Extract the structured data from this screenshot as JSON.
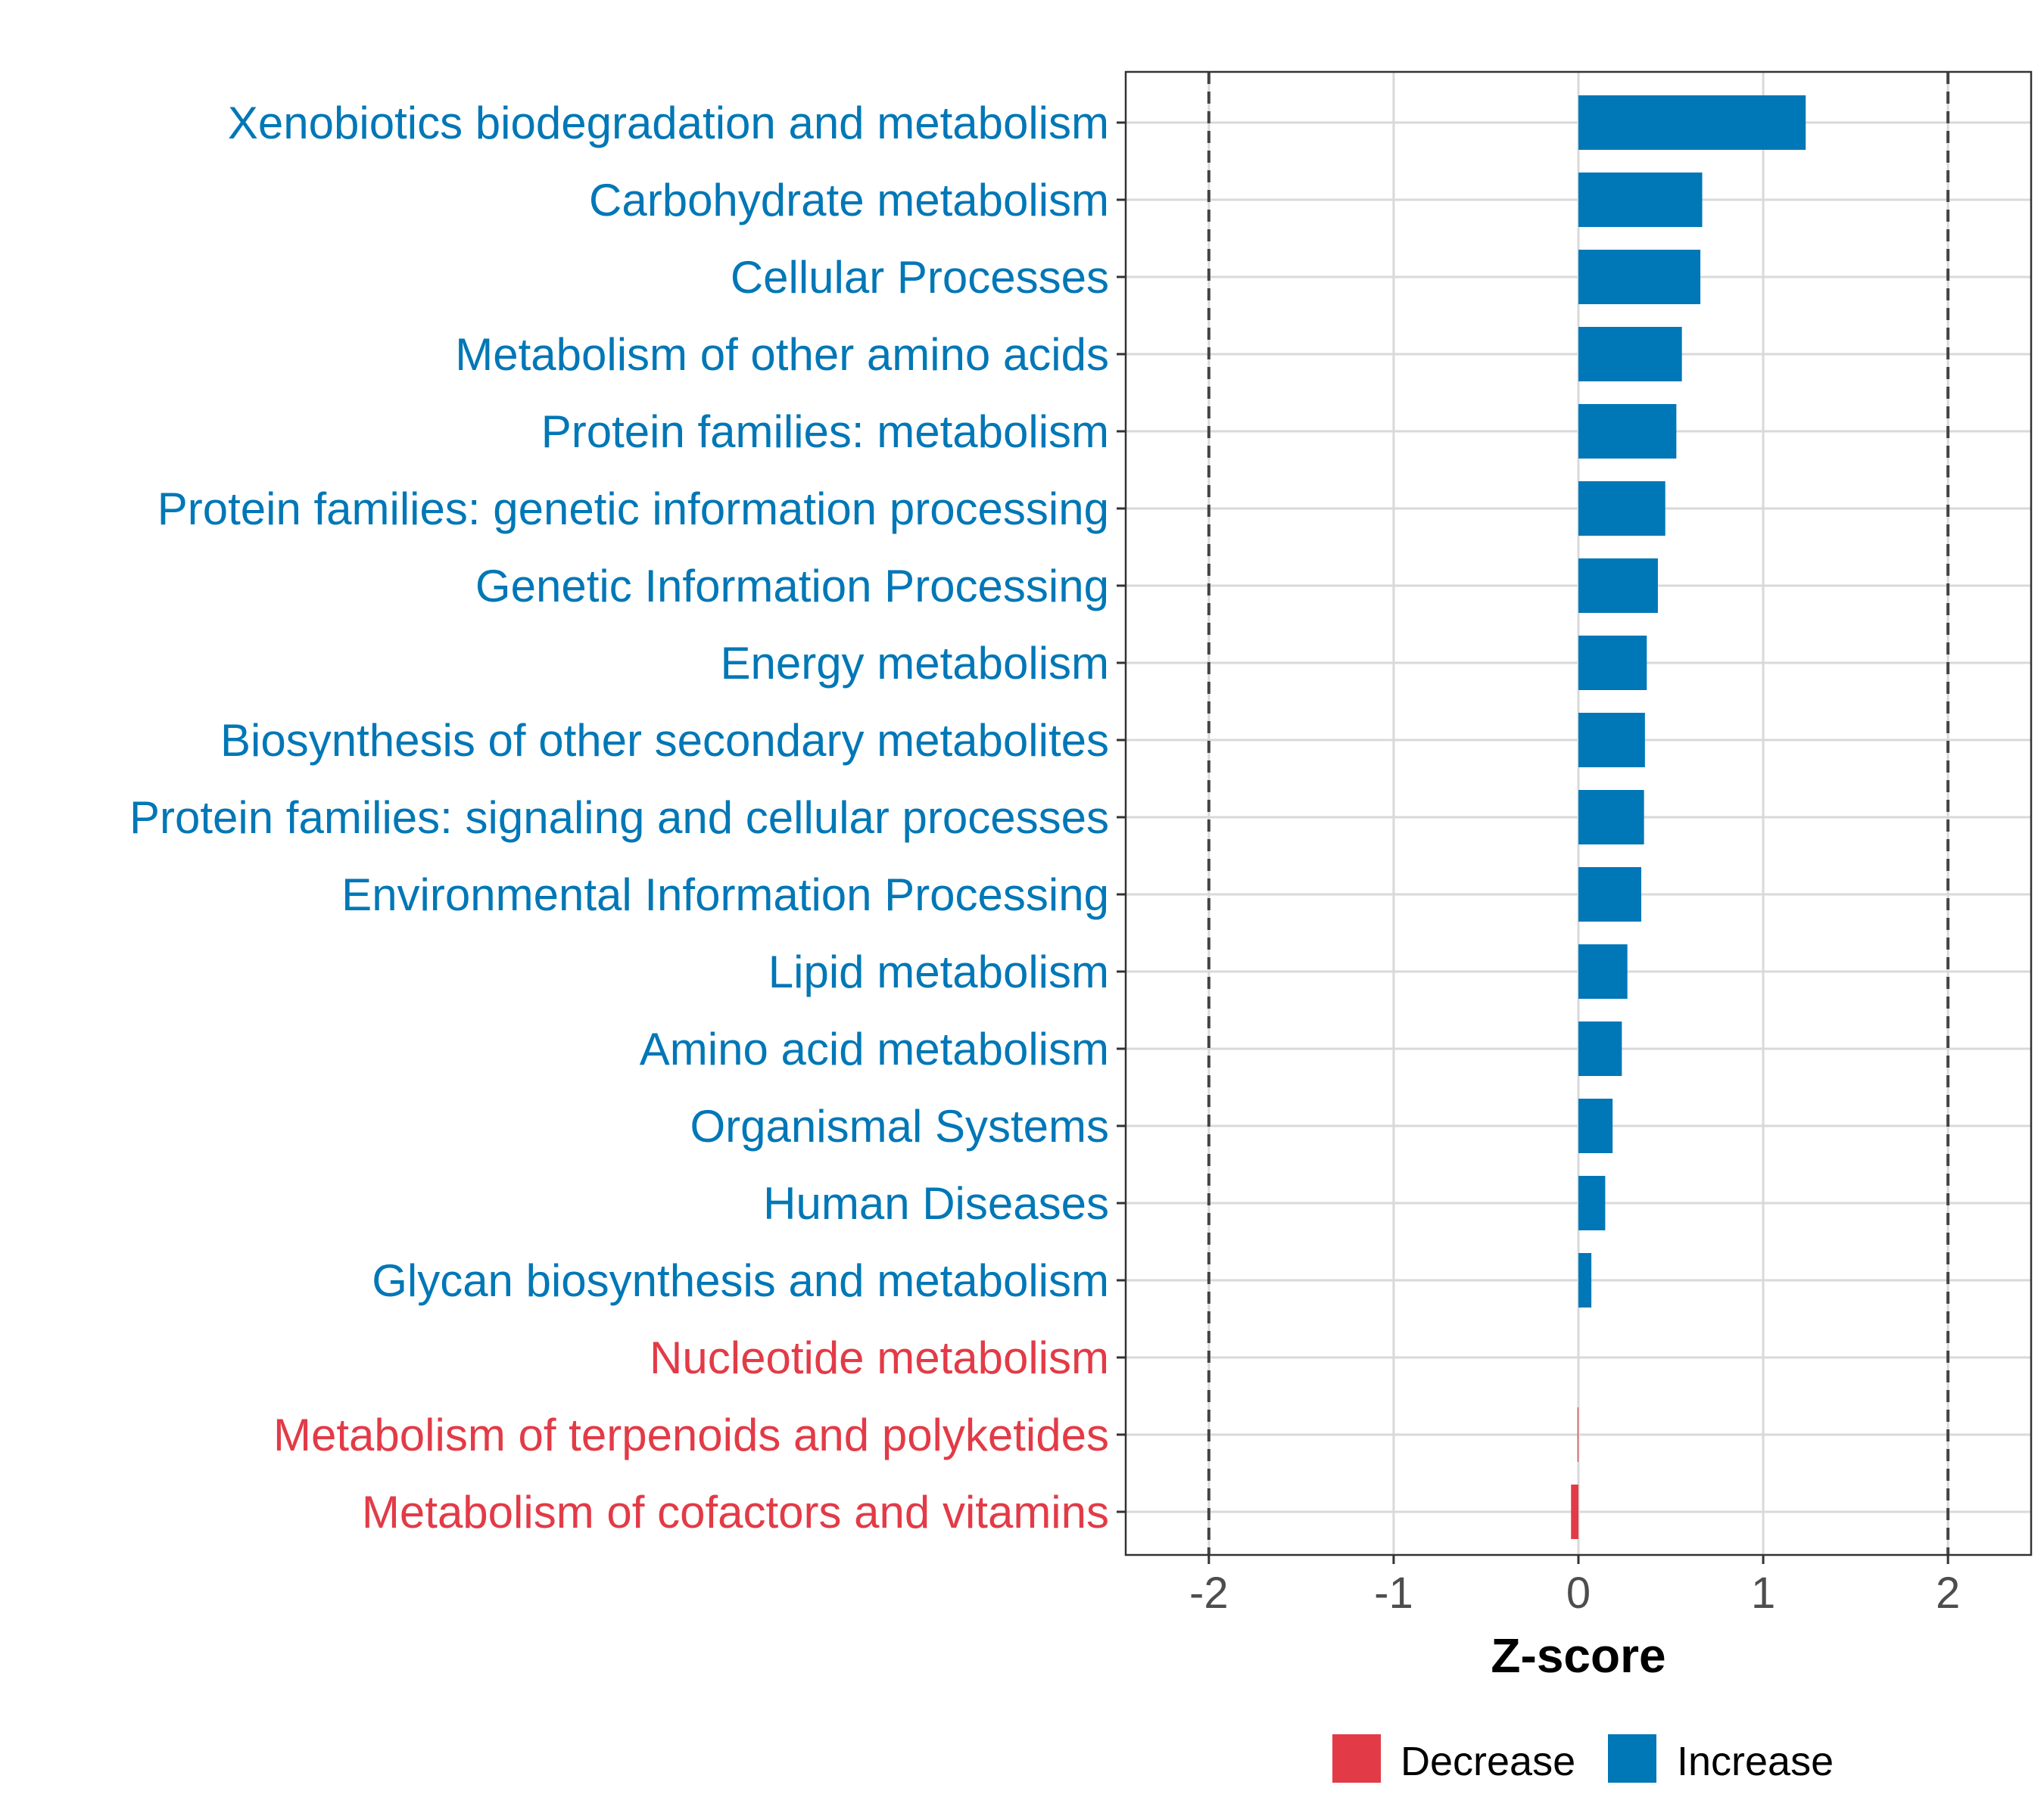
{
  "chart_data": {
    "type": "bar",
    "orientation": "horizontal",
    "categories": [
      "Xenobiotics biodegradation and metabolism",
      "Carbohydrate metabolism",
      "Cellular Processes",
      "Metabolism of other amino acids",
      "Protein families: metabolism",
      "Protein families: genetic information processing",
      "Genetic Information Processing",
      "Energy metabolism",
      "Biosynthesis of other secondary metabolites",
      "Protein families: signaling and cellular processes",
      "Environmental Information Processing",
      "Lipid metabolism",
      "Amino acid metabolism",
      "Organismal Systems",
      "Human Diseases",
      "Glycan biosynthesis and metabolism",
      "Nucleotide metabolism",
      "Metabolism of terpenoids and polyketides",
      "Metabolism of cofactors and vitamins"
    ],
    "values": [
      1.23,
      0.67,
      0.66,
      0.56,
      0.53,
      0.47,
      0.43,
      0.37,
      0.36,
      0.355,
      0.34,
      0.265,
      0.235,
      0.185,
      0.145,
      0.07,
      0.0,
      -0.005,
      -0.04
    ],
    "groups": [
      "Increase",
      "Increase",
      "Increase",
      "Increase",
      "Increase",
      "Increase",
      "Increase",
      "Increase",
      "Increase",
      "Increase",
      "Increase",
      "Increase",
      "Increase",
      "Increase",
      "Increase",
      "Increase",
      "Decrease",
      "Decrease",
      "Decrease"
    ],
    "xlabel": "Z-score",
    "xlim": [
      -2.45,
      2.45
    ],
    "xticks": [
      -2,
      -1,
      0,
      1,
      2
    ],
    "xtick_labels": [
      "-2",
      "-1",
      "0",
      "1",
      "2"
    ],
    "reference_lines": [
      -2,
      2
    ],
    "grid": true,
    "legend": {
      "placement": "bottom",
      "items": [
        {
          "label": "Decrease",
          "color": "#e23b47"
        },
        {
          "label": "Increase",
          "color": "#0077b6"
        }
      ]
    },
    "colors": {
      "Increase": "#0077b6",
      "Decrease": "#e23b47",
      "grid": "#d9d9d9",
      "axis_text": "#4d4d4d"
    }
  }
}
